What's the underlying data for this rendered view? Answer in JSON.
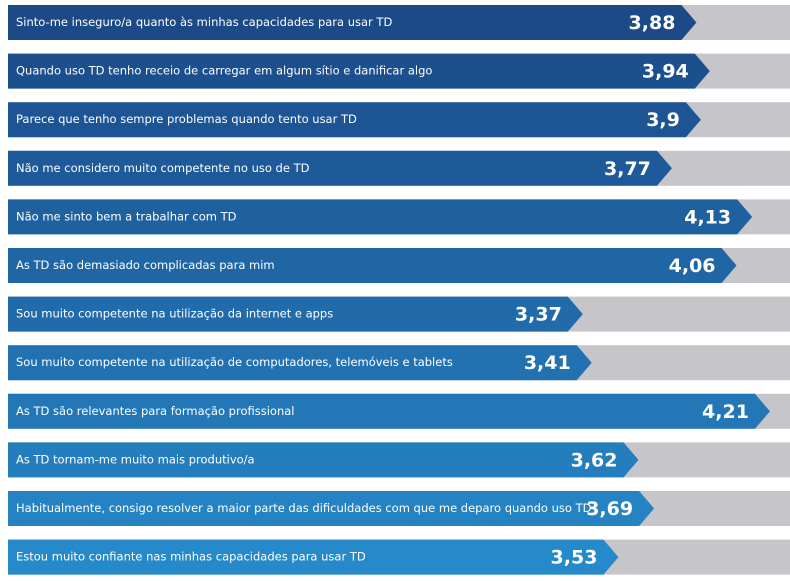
{
  "chart_data": {
    "type": "bar",
    "orientation": "horizontal",
    "categories": [
      "Sinto-me inseguro/a quanto às minhas capacidades para usar TD",
      "Quando uso TD tenho receio de carregar em algum sítio e danificar algo",
      "Parece que tenho sempre problemas quando tento usar TD",
      "Não me considero muito competente no uso de TD",
      "Não me sinto bem a trabalhar com TD",
      "As TD são demasiado complicadas para mim",
      "Sou muito competente na utilização da internet e apps",
      "Sou muito competente na utilização de computadores, telemóveis e tablets",
      "As TD são relevantes para formação profissional",
      "As TD tornam-me muito mais produtivo/a",
      "Habitualmente, consigo resolver a maior parte das dificuldades com que me deparo quando uso TD",
      "Estou muito confiante nas minhas capacidades para usar TD"
    ],
    "values": [
      3.88,
      3.94,
      3.9,
      3.77,
      4.13,
      4.06,
      3.37,
      3.41,
      4.21,
      3.62,
      3.69,
      3.53
    ],
    "value_labels": [
      "3,88",
      "3,94",
      "3,9",
      "3,77",
      "4,13",
      "4,06",
      "3,37",
      "3,41",
      "4,21",
      "3,62",
      "3,69",
      "3,53"
    ],
    "colors": [
      "#1b4a87",
      "#1c4f8d",
      "#1d5493",
      "#1e5a99",
      "#1f609f",
      "#2066a5",
      "#216bab",
      "#2271b1",
      "#2377b7",
      "#247dbd",
      "#2583c3",
      "#2689c9"
    ],
    "xlim": [
      0.79,
      4.3
    ]
  }
}
